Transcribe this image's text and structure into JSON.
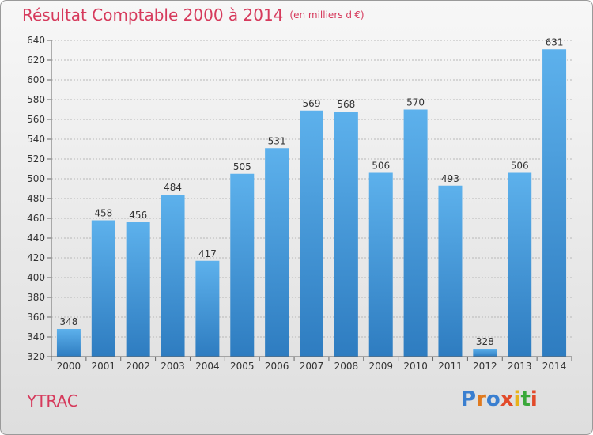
{
  "header": {
    "title": "Résultat Comptable 2000 à 2014",
    "subtitle": "(en milliers d'€)"
  },
  "footer": {
    "commune": "YTRAC",
    "logo_text": "Proxiti",
    "logo_colors": [
      "#3a7fd0",
      "#e07a1f",
      "#3a7fd0",
      "#e24a2a",
      "#e8b21a",
      "#3aa83a",
      "#e24a2a"
    ]
  },
  "colors": {
    "bar_light": "#5db1ec",
    "bar_dark": "#2e7cc0",
    "title": "#d63a5c",
    "grid": "#b8b8b8"
  },
  "chart_data": {
    "type": "bar",
    "title": "Résultat Comptable 2000 à 2014",
    "xlabel": "",
    "ylabel": "",
    "categories": [
      "2000",
      "2001",
      "2002",
      "2003",
      "2004",
      "2005",
      "2006",
      "2007",
      "2008",
      "2009",
      "2010",
      "2011",
      "2012",
      "2013",
      "2014"
    ],
    "values": [
      348,
      458,
      456,
      484,
      417,
      505,
      531,
      569,
      568,
      506,
      570,
      493,
      328,
      506,
      631
    ],
    "ylim": [
      320,
      640
    ],
    "ytick_step": 20,
    "grid": true,
    "data_labels": true
  }
}
